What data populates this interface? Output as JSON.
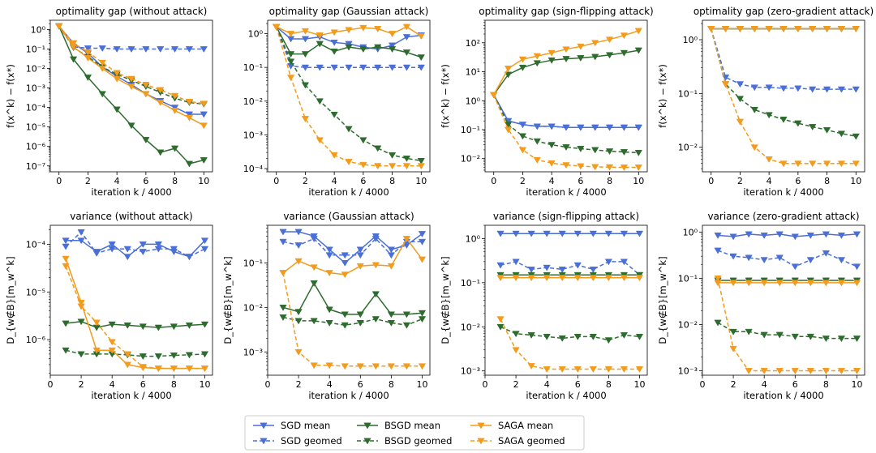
{
  "legend": {
    "location": "bottom-center",
    "entries": [
      {
        "key": "sgd_mean",
        "label": "SGD mean"
      },
      {
        "key": "bsgd_mean",
        "label": "BSGD mean"
      },
      {
        "key": "saga_mean",
        "label": "SAGA mean"
      },
      {
        "key": "sgd_geomed",
        "label": "SGD geomed"
      },
      {
        "key": "bsgd_geomed",
        "label": "BSGD geomed"
      },
      {
        "key": "saga_geomed",
        "label": "SAGA geomed"
      }
    ]
  },
  "series_styles": {
    "sgd_mean": {
      "color": "#4a6fd6",
      "marker": "triangle-down",
      "linestyle": "solid"
    },
    "sgd_geomed": {
      "color": "#4a6fd6",
      "marker": "triangle-down",
      "linestyle": "dashed"
    },
    "bsgd_mean": {
      "color": "#2e6b2e",
      "marker": "triangle-down",
      "linestyle": "solid"
    },
    "bsgd_geomed": {
      "color": "#2e6b2e",
      "marker": "triangle-down",
      "linestyle": "dashed"
    },
    "saga_mean": {
      "color": "#f39b1c",
      "marker": "triangle-down",
      "linestyle": "solid"
    },
    "saga_geomed": {
      "color": "#f39b1c",
      "marker": "triangle-down",
      "linestyle": "dashed"
    }
  },
  "chart_data": [
    {
      "type": "line",
      "title": "optimality gap (without attack)",
      "xlabel": "iteration k / 4000",
      "ylabel": "f(x^k) − f(x*)",
      "yscale": "log",
      "xlim": [
        -0.6,
        10.6
      ],
      "ylim": [
        5e-08,
        3
      ],
      "xticks": [
        0,
        2,
        4,
        6,
        8,
        10
      ],
      "x": [
        0,
        1,
        2,
        3,
        4,
        5,
        6,
        7,
        8,
        9,
        10
      ],
      "series": [
        {
          "key": "sgd_mean",
          "values": [
            1.5,
            0.2,
            0.06,
            0.012,
            0.004,
            0.0015,
            0.0005,
            0.00022,
            0.0001,
            4.5e-05,
            4.5e-05
          ]
        },
        {
          "key": "sgd_geomed",
          "values": [
            1.5,
            0.13,
            0.11,
            0.11,
            0.1,
            0.1,
            0.1,
            0.1,
            0.1,
            0.1,
            0.1
          ]
        },
        {
          "key": "bsgd_mean",
          "values": [
            1.5,
            0.03,
            0.0035,
            0.0005,
            8e-05,
            1.2e-05,
            2.2e-06,
            5e-07,
            8e-07,
            1.3e-07,
            2e-07
          ]
        },
        {
          "key": "bsgd_geomed",
          "values": [
            1.5,
            0.12,
            0.04,
            0.012,
            0.005,
            0.0025,
            0.0012,
            0.0006,
            0.0003,
            0.00018,
            0.00015
          ]
        },
        {
          "key": "saga_mean",
          "values": [
            1.5,
            0.13,
            0.035,
            0.01,
            0.003,
            0.0012,
            0.0005,
            0.00018,
            7e-05,
            3e-05,
            1.2e-05
          ]
        },
        {
          "key": "saga_geomed",
          "values": [
            1.5,
            0.2,
            0.07,
            0.02,
            0.006,
            0.003,
            0.0015,
            0.0008,
            0.0004,
            0.0002,
            0.00016
          ]
        }
      ]
    },
    {
      "type": "line",
      "title": "optimality gap (Gaussian attack)",
      "xlabel": "iteration k / 4000",
      "ylabel": "",
      "yscale": "log",
      "xlim": [
        -0.6,
        10.6
      ],
      "ylim": [
        8e-05,
        2.5
      ],
      "xticks": [
        0,
        2,
        4,
        6,
        8,
        10
      ],
      "x": [
        0,
        1,
        2,
        3,
        4,
        5,
        6,
        7,
        8,
        9,
        10
      ],
      "series": [
        {
          "key": "sgd_mean",
          "values": [
            1.6,
            0.7,
            0.7,
            0.8,
            0.55,
            0.5,
            0.4,
            0.35,
            0.45,
            0.8,
            0.9
          ]
        },
        {
          "key": "sgd_geomed",
          "values": [
            1.6,
            0.11,
            0.1,
            0.1,
            0.1,
            0.1,
            0.1,
            0.1,
            0.1,
            0.1,
            0.1
          ]
        },
        {
          "key": "bsgd_mean",
          "values": [
            1.6,
            0.25,
            0.25,
            0.5,
            0.3,
            0.4,
            0.35,
            0.4,
            0.35,
            0.28,
            0.2
          ]
        },
        {
          "key": "bsgd_geomed",
          "values": [
            1.6,
            0.15,
            0.03,
            0.01,
            0.004,
            0.0015,
            0.0007,
            0.0004,
            0.00025,
            0.0002,
            0.00017
          ]
        },
        {
          "key": "saga_mean",
          "values": [
            1.6,
            1.0,
            1.2,
            0.9,
            1.1,
            1.3,
            1.5,
            1.4,
            1.0,
            1.6,
            0.85
          ]
        },
        {
          "key": "saga_geomed",
          "values": [
            1.6,
            0.05,
            0.003,
            0.0007,
            0.00025,
            0.00016,
            0.00013,
            0.00012,
            0.00012,
            0.00012,
            0.00012
          ]
        }
      ]
    },
    {
      "type": "line",
      "title": "optimality gap (sign-flipping attack)",
      "xlabel": "iteration k / 4000",
      "ylabel": "f(x^k) − f(x*)",
      "yscale": "log",
      "xlim": [
        -0.6,
        10.6
      ],
      "ylim": [
        0.0035,
        600
      ],
      "xticks": [
        0,
        2,
        4,
        6,
        8,
        10
      ],
      "x": [
        0,
        1,
        2,
        3,
        4,
        5,
        6,
        7,
        8,
        9,
        10
      ],
      "series": [
        {
          "key": "sgd_mean",
          "values": [
            1.6,
            0.2,
            0.15,
            0.13,
            0.13,
            0.12,
            0.12,
            0.12,
            0.12,
            0.12,
            0.12
          ]
        },
        {
          "key": "sgd_geomed",
          "values": [
            1.6,
            0.2,
            0.15,
            0.13,
            0.13,
            0.12,
            0.12,
            0.12,
            0.12,
            0.12,
            0.12
          ]
        },
        {
          "key": "bsgd_mean",
          "values": [
            1.6,
            8,
            14,
            20,
            25,
            28,
            30,
            33,
            38,
            45,
            55
          ]
        },
        {
          "key": "bsgd_geomed",
          "values": [
            1.6,
            0.15,
            0.06,
            0.04,
            0.03,
            0.025,
            0.022,
            0.02,
            0.018,
            0.017,
            0.016
          ]
        },
        {
          "key": "saga_mean",
          "values": [
            1.6,
            13,
            27,
            35,
            45,
            60,
            75,
            100,
            130,
            180,
            260
          ]
        },
        {
          "key": "saga_geomed",
          "values": [
            1.6,
            0.1,
            0.02,
            0.009,
            0.007,
            0.006,
            0.0055,
            0.0052,
            0.0051,
            0.005,
            0.005
          ]
        }
      ]
    },
    {
      "type": "line",
      "title": "optimality gap (zero-gradient attack)",
      "xlabel": "iteration k / 4000",
      "ylabel": "f(x^k) − f(x*)",
      "yscale": "log",
      "xlim": [
        -0.6,
        10.6
      ],
      "ylim": [
        0.0035,
        2.3
      ],
      "xticks": [
        0,
        2,
        4,
        6,
        8,
        10
      ],
      "x": [
        0,
        1,
        2,
        3,
        4,
        5,
        6,
        7,
        8,
        9,
        10
      ],
      "series": [
        {
          "key": "sgd_mean",
          "values": [
            1.6,
            1.6,
            1.6,
            1.6,
            1.6,
            1.6,
            1.6,
            1.6,
            1.6,
            1.6,
            1.6
          ]
        },
        {
          "key": "sgd_geomed",
          "values": [
            1.6,
            0.2,
            0.15,
            0.13,
            0.13,
            0.125,
            0.125,
            0.12,
            0.12,
            0.12,
            0.12
          ]
        },
        {
          "key": "bsgd_mean",
          "values": [
            1.6,
            1.6,
            1.6,
            1.6,
            1.6,
            1.6,
            1.6,
            1.6,
            1.6,
            1.6,
            1.6
          ]
        },
        {
          "key": "bsgd_geomed",
          "values": [
            1.6,
            0.15,
            0.08,
            0.05,
            0.04,
            0.033,
            0.028,
            0.024,
            0.021,
            0.018,
            0.016
          ]
        },
        {
          "key": "saga_mean",
          "values": [
            1.6,
            1.6,
            1.6,
            1.6,
            1.6,
            1.6,
            1.6,
            1.6,
            1.6,
            1.6,
            1.6
          ]
        },
        {
          "key": "saga_geomed",
          "values": [
            1.6,
            0.15,
            0.03,
            0.01,
            0.006,
            0.005,
            0.005,
            0.005,
            0.005,
            0.005,
            0.005
          ]
        }
      ]
    },
    {
      "type": "line",
      "title": "variance (without attack)",
      "xlabel": "iteration k / 4000",
      "ylabel": "D_{w∉B}[m_w^k]",
      "yscale": "log",
      "xlim": [
        0,
        10.5
      ],
      "ylim": [
        1.8e-07,
        0.00025
      ],
      "xticks": [
        0,
        2,
        4,
        6,
        8,
        10
      ],
      "x": [
        1,
        2,
        3,
        4,
        5,
        6,
        7,
        8,
        9,
        10
      ],
      "series": [
        {
          "key": "sgd_mean",
          "values": [
            0.00012,
            0.00012,
            7e-05,
            0.0001,
            5.5e-05,
            0.0001,
            0.0001,
            7e-05,
            5.5e-05,
            0.00012
          ]
        },
        {
          "key": "sgd_geomed",
          "values": [
            9e-05,
            0.00018,
            6.5e-05,
            8e-05,
            8e-05,
            7e-05,
            8e-05,
            8e-05,
            5.5e-05,
            8e-05
          ]
        },
        {
          "key": "bsgd_mean",
          "values": [
            2.2e-06,
            2.4e-06,
            1.8e-06,
            2.1e-06,
            2e-06,
            1.9e-06,
            1.8e-06,
            1.9e-06,
            2e-06,
            2.1e-06
          ]
        },
        {
          "key": "bsgd_geomed",
          "values": [
            6e-07,
            5e-07,
            5e-07,
            5e-07,
            4.8e-07,
            4.5e-07,
            4.5e-07,
            4.7e-07,
            4.8e-07,
            5e-07
          ]
        },
        {
          "key": "saga_mean",
          "values": [
            5e-05,
            6e-06,
            6e-07,
            6e-07,
            3e-07,
            2.6e-07,
            2.5e-07,
            2.5e-07,
            2.5e-07,
            2.5e-07
          ]
        },
        {
          "key": "saga_geomed",
          "values": [
            3.5e-05,
            5e-06,
            2.3e-06,
            9e-07,
            5e-07,
            2.7e-07,
            2.5e-07,
            2.5e-07,
            2.5e-07,
            2.5e-07
          ]
        }
      ]
    },
    {
      "type": "line",
      "title": "variance (Gaussian attack)",
      "xlabel": "iteration k / 4000",
      "ylabel": "D_{w∉B}[m_w^k]",
      "yscale": "log",
      "xlim": [
        0,
        10.5
      ],
      "ylim": [
        0.0003,
        0.7
      ],
      "xticks": [
        0,
        2,
        4,
        6,
        8,
        10
      ],
      "x": [
        1,
        2,
        3,
        4,
        5,
        6,
        7,
        8,
        9,
        10
      ],
      "series": [
        {
          "key": "sgd_mean",
          "values": [
            0.5,
            0.5,
            0.4,
            0.2,
            0.1,
            0.2,
            0.4,
            0.2,
            0.25,
            0.45
          ]
        },
        {
          "key": "sgd_geomed",
          "values": [
            0.3,
            0.25,
            0.35,
            0.15,
            0.15,
            0.15,
            0.35,
            0.15,
            0.3,
            0.3
          ]
        },
        {
          "key": "bsgd_mean",
          "values": [
            0.01,
            0.008,
            0.035,
            0.009,
            0.007,
            0.007,
            0.02,
            0.007,
            0.007,
            0.0075
          ]
        },
        {
          "key": "bsgd_geomed",
          "values": [
            0.006,
            0.005,
            0.005,
            0.0045,
            0.004,
            0.0045,
            0.0055,
            0.0045,
            0.004,
            0.0055
          ]
        },
        {
          "key": "saga_mean",
          "values": [
            0.06,
            0.11,
            0.08,
            0.06,
            0.055,
            0.085,
            0.09,
            0.085,
            0.35,
            0.12
          ]
        },
        {
          "key": "saga_geomed",
          "values": [
            0.06,
            0.001,
            0.0005,
            0.0005,
            0.00048,
            0.00048,
            0.00048,
            0.00048,
            0.00048,
            0.00048
          ]
        }
      ]
    },
    {
      "type": "line",
      "title": "variance (sign-flipping attack)",
      "xlabel": "iteration k / 4000",
      "ylabel": "D_{w∉B}[m_w^k]",
      "yscale": "log",
      "xlim": [
        0,
        10.5
      ],
      "ylim": [
        0.0008,
        2
      ],
      "xticks": [
        0,
        2,
        4,
        6,
        8,
        10
      ],
      "x": [
        1,
        2,
        3,
        4,
        5,
        6,
        7,
        8,
        9,
        10
      ],
      "series": [
        {
          "key": "sgd_mean",
          "values": [
            1.3,
            1.3,
            1.3,
            1.3,
            1.3,
            1.3,
            1.3,
            1.3,
            1.3,
            1.3
          ]
        },
        {
          "key": "sgd_geomed",
          "values": [
            0.25,
            0.3,
            0.2,
            0.22,
            0.2,
            0.25,
            0.2,
            0.3,
            0.3,
            0.15
          ]
        },
        {
          "key": "bsgd_mean",
          "values": [
            0.15,
            0.15,
            0.15,
            0.15,
            0.15,
            0.15,
            0.15,
            0.15,
            0.15,
            0.15
          ]
        },
        {
          "key": "bsgd_geomed",
          "values": [
            0.01,
            0.007,
            0.0065,
            0.006,
            0.0055,
            0.006,
            0.006,
            0.005,
            0.0065,
            0.006
          ]
        },
        {
          "key": "saga_mean",
          "values": [
            0.13,
            0.13,
            0.13,
            0.13,
            0.13,
            0.13,
            0.13,
            0.13,
            0.13,
            0.13
          ]
        },
        {
          "key": "saga_geomed",
          "values": [
            0.015,
            0.003,
            0.0013,
            0.0011,
            0.0011,
            0.0011,
            0.0011,
            0.0011,
            0.0011,
            0.0011
          ]
        }
      ]
    },
    {
      "type": "line",
      "title": "variance (zero-gradient attack)",
      "xlabel": "iteration k / 4000",
      "ylabel": "D_{w∉B}[m_w^k]",
      "yscale": "log",
      "xlim": [
        0,
        10.5
      ],
      "ylim": [
        0.0008,
        1.4
      ],
      "xticks": [
        0,
        2,
        4,
        6,
        8,
        10
      ],
      "x": [
        1,
        2,
        3,
        4,
        5,
        6,
        7,
        8,
        9,
        10
      ],
      "series": [
        {
          "key": "sgd_mean",
          "values": [
            0.85,
            0.8,
            0.9,
            0.85,
            0.9,
            0.8,
            0.85,
            0.9,
            0.85,
            0.9
          ]
        },
        {
          "key": "sgd_geomed",
          "values": [
            0.4,
            0.3,
            0.28,
            0.25,
            0.28,
            0.18,
            0.25,
            0.35,
            0.25,
            0.18
          ]
        },
        {
          "key": "bsgd_mean",
          "values": [
            0.09,
            0.09,
            0.09,
            0.09,
            0.09,
            0.09,
            0.09,
            0.09,
            0.09,
            0.09
          ]
        },
        {
          "key": "bsgd_geomed",
          "values": [
            0.011,
            0.007,
            0.007,
            0.006,
            0.006,
            0.0055,
            0.0055,
            0.005,
            0.005,
            0.005
          ]
        },
        {
          "key": "saga_mean",
          "values": [
            0.08,
            0.08,
            0.08,
            0.08,
            0.08,
            0.08,
            0.08,
            0.08,
            0.08,
            0.08
          ]
        },
        {
          "key": "saga_geomed",
          "values": [
            0.1,
            0.003,
            0.001,
            0.001,
            0.001,
            0.001,
            0.001,
            0.001,
            0.001,
            0.001
          ]
        }
      ]
    }
  ]
}
